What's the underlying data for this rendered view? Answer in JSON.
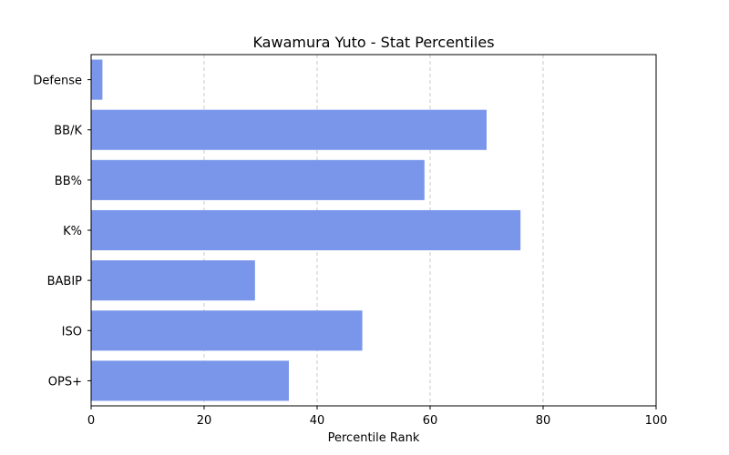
{
  "chart_data": {
    "type": "bar",
    "orientation": "horizontal",
    "title": "Kawamura Yuto - Stat Percentiles",
    "xlabel": "Percentile Rank",
    "ylabel": "",
    "categories": [
      "Defense",
      "BB/K",
      "BB%",
      "K%",
      "BABIP",
      "ISO",
      "OPS+"
    ],
    "values": [
      2,
      70,
      59,
      76,
      29,
      48,
      35
    ],
    "xlim": [
      0,
      100
    ],
    "xticks": [
      "0",
      "20",
      "40",
      "60",
      "80",
      "100"
    ],
    "grid": "x-dashed",
    "bar_color": "#7a96ea",
    "grid_color": "#c8c8c8"
  }
}
